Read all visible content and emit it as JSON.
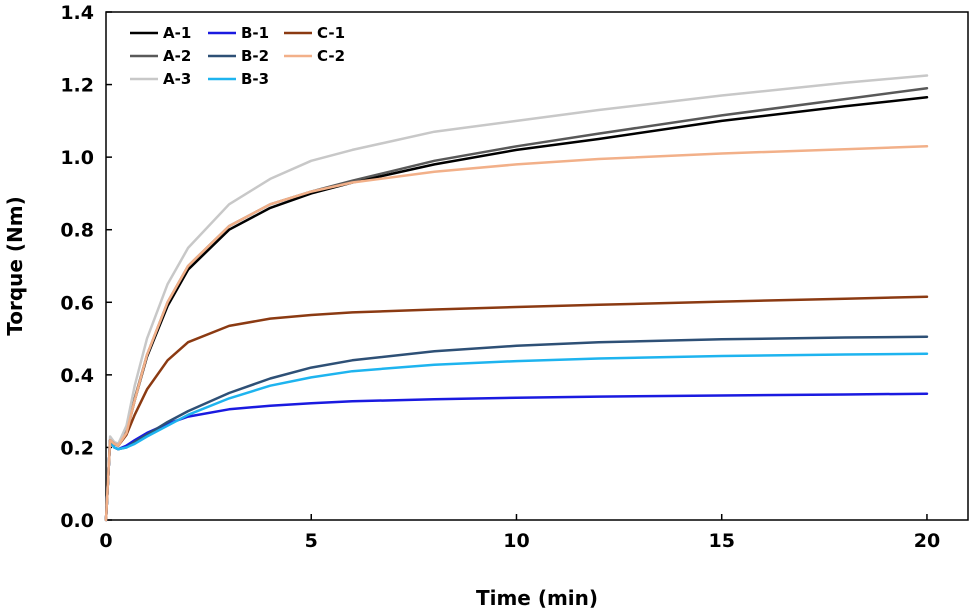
{
  "chart_data": {
    "type": "line",
    "title": "",
    "xlabel": "Time (min)",
    "ylabel": "Torque (Nm)",
    "xlim": [
      0,
      21
    ],
    "ylim": [
      0,
      1.4
    ],
    "xticks": [
      0,
      5,
      10,
      15,
      20
    ],
    "yticks": [
      0.0,
      0.2,
      0.4,
      0.6,
      0.8,
      1.0,
      1.2,
      1.4
    ],
    "xtick_labels": [
      "0",
      "5",
      "10",
      "15",
      "20"
    ],
    "ytick_labels": [
      "0.0",
      "0.2",
      "0.4",
      "0.6",
      "0.8",
      "1.0",
      "1.2",
      "1.4"
    ],
    "grid": false,
    "legend_position": "top-left",
    "legend_columns": 3,
    "series": [
      {
        "name": "A-1",
        "color": "#000000",
        "x": [
          0,
          0.1,
          0.2,
          0.3,
          0.5,
          0.7,
          1,
          1.5,
          2,
          3,
          4,
          5,
          6,
          8,
          10,
          12,
          15,
          18,
          20
        ],
        "y": [
          0,
          0.22,
          0.21,
          0.205,
          0.24,
          0.33,
          0.45,
          0.59,
          0.69,
          0.8,
          0.86,
          0.9,
          0.93,
          0.98,
          1.02,
          1.05,
          1.1,
          1.14,
          1.165
        ]
      },
      {
        "name": "A-2",
        "color": "#595959",
        "x": [
          0,
          0.1,
          0.2,
          0.3,
          0.5,
          0.7,
          1,
          1.5,
          2,
          3,
          4,
          5,
          6,
          8,
          10,
          12,
          15,
          18,
          20
        ],
        "y": [
          0,
          0.22,
          0.21,
          0.205,
          0.245,
          0.335,
          0.455,
          0.6,
          0.7,
          0.81,
          0.87,
          0.905,
          0.935,
          0.99,
          1.03,
          1.065,
          1.115,
          1.16,
          1.19
        ]
      },
      {
        "name": "A-3",
        "color": "#c8c8c8",
        "x": [
          0,
          0.1,
          0.2,
          0.3,
          0.5,
          0.7,
          1,
          1.5,
          2,
          3,
          4,
          5,
          6,
          8,
          10,
          12,
          15,
          18,
          20
        ],
        "y": [
          0,
          0.23,
          0.215,
          0.21,
          0.26,
          0.37,
          0.5,
          0.65,
          0.75,
          0.87,
          0.94,
          0.99,
          1.02,
          1.07,
          1.1,
          1.13,
          1.17,
          1.205,
          1.225
        ]
      },
      {
        "name": "B-1",
        "color": "#1a1ae0",
        "x": [
          0,
          0.1,
          0.2,
          0.3,
          0.5,
          0.7,
          1,
          1.5,
          2,
          3,
          4,
          5,
          6,
          8,
          10,
          12,
          15,
          18,
          20
        ],
        "y": [
          0,
          0.22,
          0.2,
          0.195,
          0.205,
          0.22,
          0.24,
          0.265,
          0.285,
          0.305,
          0.315,
          0.322,
          0.327,
          0.333,
          0.337,
          0.34,
          0.343,
          0.346,
          0.348
        ]
      },
      {
        "name": "B-2",
        "color": "#2e5076",
        "x": [
          0,
          0.1,
          0.2,
          0.3,
          0.5,
          0.7,
          1,
          1.5,
          2,
          3,
          4,
          5,
          6,
          8,
          10,
          12,
          15,
          18,
          20
        ],
        "y": [
          0,
          0.22,
          0.2,
          0.195,
          0.2,
          0.215,
          0.235,
          0.27,
          0.3,
          0.35,
          0.39,
          0.42,
          0.44,
          0.465,
          0.48,
          0.49,
          0.498,
          0.503,
          0.505
        ]
      },
      {
        "name": "B-3",
        "color": "#1eb4ef",
        "x": [
          0,
          0.1,
          0.2,
          0.3,
          0.5,
          0.7,
          1,
          1.5,
          2,
          3,
          4,
          5,
          6,
          8,
          10,
          12,
          15,
          18,
          20
        ],
        "y": [
          0,
          0.22,
          0.2,
          0.195,
          0.2,
          0.21,
          0.23,
          0.26,
          0.29,
          0.335,
          0.37,
          0.393,
          0.41,
          0.428,
          0.438,
          0.445,
          0.452,
          0.456,
          0.458
        ]
      },
      {
        "name": "C-1",
        "color": "#8b3a12",
        "x": [
          0,
          0.1,
          0.2,
          0.3,
          0.5,
          0.7,
          1,
          1.5,
          2,
          3,
          4,
          5,
          6,
          8,
          10,
          12,
          15,
          18,
          20
        ],
        "y": [
          0,
          0.22,
          0.21,
          0.205,
          0.235,
          0.29,
          0.36,
          0.44,
          0.49,
          0.535,
          0.555,
          0.565,
          0.572,
          0.58,
          0.587,
          0.593,
          0.602,
          0.61,
          0.615
        ]
      },
      {
        "name": "C-2",
        "color": "#f2b089",
        "x": [
          0,
          0.1,
          0.2,
          0.3,
          0.5,
          0.7,
          1,
          1.5,
          2,
          3,
          4,
          5,
          6,
          8,
          10,
          12,
          15,
          18,
          20
        ],
        "y": [
          0,
          0.22,
          0.21,
          0.205,
          0.24,
          0.33,
          0.455,
          0.6,
          0.7,
          0.81,
          0.87,
          0.905,
          0.93,
          0.96,
          0.98,
          0.995,
          1.01,
          1.022,
          1.03
        ]
      }
    ]
  }
}
